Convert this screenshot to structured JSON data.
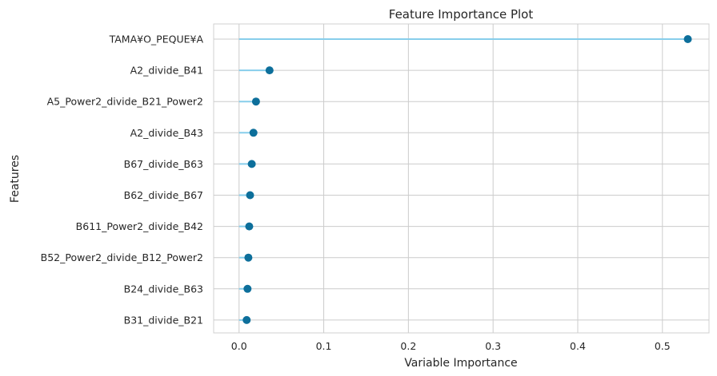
{
  "chart_data": {
    "type": "scatter",
    "style": "lollipop",
    "title": "Feature Importance Plot",
    "xlabel": "Variable Importance",
    "ylabel": "Features",
    "xlim": [
      -0.03,
      0.555
    ],
    "xticks": [
      "0.0",
      "0.1",
      "0.2",
      "0.3",
      "0.4",
      "0.5"
    ],
    "xtick_values": [
      0.0,
      0.1,
      0.2,
      0.3,
      0.4,
      0.5
    ],
    "grid": true,
    "categories": [
      "TAMA¥O_PEQUE¥A",
      "A2_divide_B41",
      "A5_Power2_divide_B21_Power2",
      "A2_divide_B43",
      "B67_divide_B63",
      "B62_divide_B67",
      "B611_Power2_divide_B42",
      "B52_Power2_divide_B12_Power2",
      "B24_divide_B63",
      "B31_divide_B21"
    ],
    "values": [
      0.53,
      0.036,
      0.02,
      0.017,
      0.015,
      0.013,
      0.012,
      0.011,
      0.01,
      0.009
    ],
    "colors": {
      "stem": "#87ceeb",
      "point": "#0d6f9b",
      "grid": "#cccccc"
    }
  }
}
